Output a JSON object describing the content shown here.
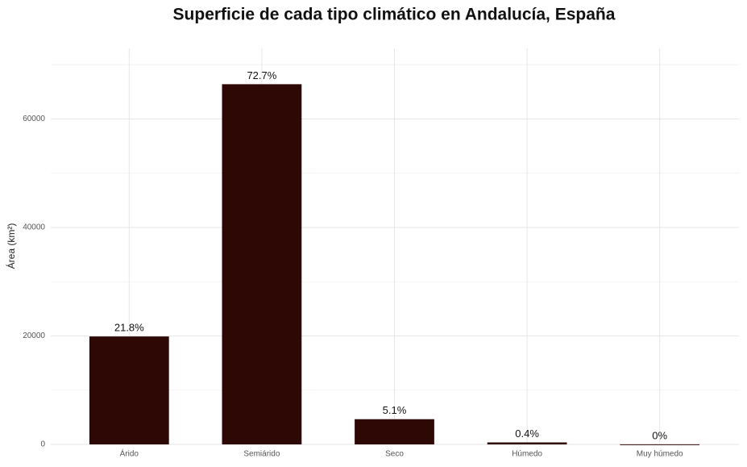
{
  "chart_data": {
    "type": "bar",
    "title": "Superficie de cada tipo climático en Andalucía, España",
    "y_label": "Área (km²)",
    "categories": [
      "Árido",
      "Semiárido",
      "Seco",
      "Húmedo",
      "Muy húmedo"
    ],
    "values": [
      19900,
      66400,
      4650,
      370,
      20
    ],
    "percent_labels": [
      "21.8%",
      "72.7%",
      "5.1%",
      "0.4%",
      "0%"
    ],
    "color": "#2e0805",
    "ylim": [
      0,
      73000
    ],
    "yticks": [
      0,
      20000,
      40000,
      60000
    ],
    "minor_yticks": [
      10000,
      30000,
      50000,
      70000
    ],
    "grid": true
  }
}
